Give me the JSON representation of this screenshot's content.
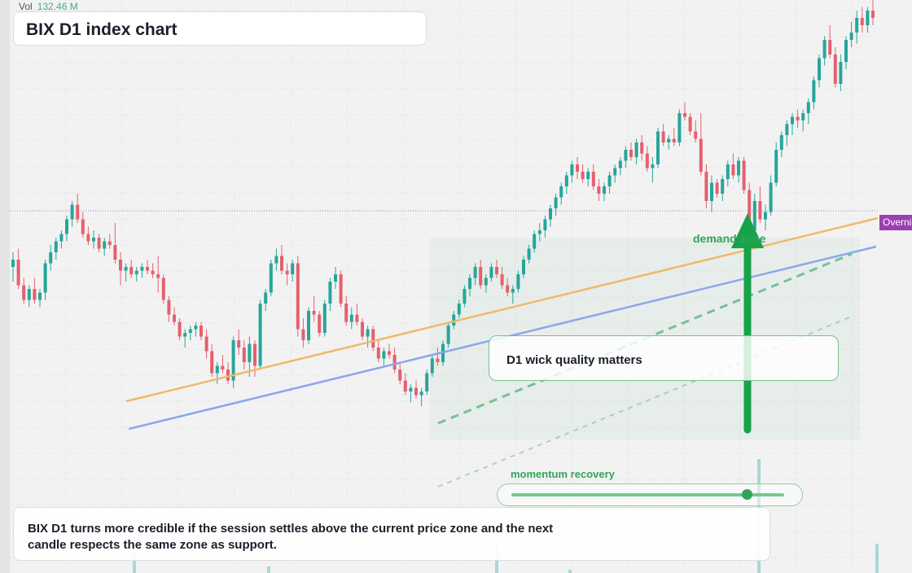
{
  "volume": {
    "label": "Vol",
    "value": "132.46 M"
  },
  "title": "BIX D1 index chart",
  "annotations": {
    "note": "D1 wick quality matters",
    "zone_label": "demand zone",
    "momentum_label": "momentum recovery",
    "momentum_level": 0.87,
    "price_tag": "Overnight",
    "summary": "BIX D1 turns more credible if the session settles above the current price zone and the next candle respects the same zone as support."
  },
  "colors": {
    "up": "#26a69a",
    "down": "#e5606e",
    "trend_orange": "#f0b96a",
    "trend_blue": "#8aa6ee",
    "zone_green": "#2ea55a",
    "price_tag": "#9c3fb0"
  },
  "chart_data": {
    "type": "candlestick",
    "title": "BIX D1 index chart",
    "timeframe": "D1",
    "price_range": [
      0,
      100
    ],
    "candles": [
      [
        50,
        54,
        46,
        52
      ],
      [
        52,
        55,
        44,
        45
      ],
      [
        45,
        47,
        40,
        41
      ],
      [
        41,
        45,
        39,
        44
      ],
      [
        44,
        47,
        40,
        41
      ],
      [
        41,
        44,
        39,
        43
      ],
      [
        43,
        52,
        41,
        51
      ],
      [
        51,
        56,
        49,
        54
      ],
      [
        54,
        58,
        52,
        57
      ],
      [
        57,
        60,
        55,
        59
      ],
      [
        59,
        64,
        57,
        63
      ],
      [
        63,
        68,
        61,
        67
      ],
      [
        67,
        70,
        62,
        63
      ],
      [
        63,
        65,
        58,
        59
      ],
      [
        59,
        61,
        56,
        57
      ],
      [
        57,
        60,
        55,
        58
      ],
      [
        58,
        59,
        54,
        55
      ],
      [
        55,
        58,
        53,
        57
      ],
      [
        57,
        59,
        55,
        56
      ],
      [
        56,
        62,
        51,
        52
      ],
      [
        52,
        54,
        45,
        49
      ],
      [
        49,
        51,
        46,
        50
      ],
      [
        50,
        52,
        47,
        48
      ],
      [
        48,
        50,
        46,
        49
      ],
      [
        49,
        51,
        47,
        50
      ],
      [
        50,
        52,
        48,
        49
      ],
      [
        49,
        51,
        47,
        48
      ],
      [
        48,
        53,
        43,
        47
      ],
      [
        47,
        48,
        40,
        41
      ],
      [
        41,
        42,
        35,
        37
      ],
      [
        37,
        39,
        34,
        35
      ],
      [
        35,
        36,
        30,
        31
      ],
      [
        31,
        33,
        28,
        32
      ],
      [
        32,
        34,
        30,
        33
      ],
      [
        33,
        35,
        31,
        34
      ],
      [
        34,
        35,
        30,
        31
      ],
      [
        31,
        33,
        25,
        27
      ],
      [
        27,
        29,
        20,
        21
      ],
      [
        21,
        24,
        18,
        23
      ],
      [
        23,
        26,
        21,
        22
      ],
      [
        22,
        24,
        18,
        19
      ],
      [
        19,
        31,
        17,
        30
      ],
      [
        30,
        33,
        26,
        28
      ],
      [
        28,
        30,
        22,
        24
      ],
      [
        24,
        31,
        20,
        29
      ],
      [
        29,
        30,
        20,
        23
      ],
      [
        23,
        41,
        22,
        40
      ],
      [
        40,
        44,
        38,
        43
      ],
      [
        43,
        52,
        42,
        51
      ],
      [
        51,
        55,
        49,
        53
      ],
      [
        53,
        56,
        48,
        49
      ],
      [
        49,
        51,
        45,
        48
      ],
      [
        48,
        52,
        46,
        51
      ],
      [
        51,
        53,
        31,
        33
      ],
      [
        33,
        36,
        28,
        30
      ],
      [
        30,
        39,
        29,
        38
      ],
      [
        38,
        42,
        35,
        37
      ],
      [
        37,
        38,
        31,
        32
      ],
      [
        32,
        41,
        31,
        40
      ],
      [
        40,
        47,
        38,
        46
      ],
      [
        46,
        50,
        44,
        48
      ],
      [
        48,
        49,
        39,
        40
      ],
      [
        40,
        42,
        34,
        35
      ],
      [
        35,
        39,
        33,
        37
      ],
      [
        37,
        40,
        34,
        35
      ],
      [
        35,
        36,
        30,
        31
      ],
      [
        31,
        34,
        28,
        33
      ],
      [
        33,
        34,
        27,
        28
      ],
      [
        28,
        30,
        24,
        25
      ],
      [
        25,
        28,
        23,
        27
      ],
      [
        27,
        29,
        25,
        26
      ],
      [
        26,
        28,
        21,
        22
      ],
      [
        22,
        24,
        18,
        19
      ],
      [
        19,
        21,
        15,
        16
      ],
      [
        16,
        18,
        13,
        17
      ],
      [
        17,
        19,
        14,
        15
      ],
      [
        15,
        17,
        12,
        16
      ],
      [
        16,
        22,
        15,
        21
      ],
      [
        21,
        26,
        20,
        25
      ],
      [
        25,
        28,
        23,
        24
      ],
      [
        24,
        30,
        23,
        29
      ],
      [
        29,
        35,
        28,
        34
      ],
      [
        34,
        38,
        33,
        37
      ],
      [
        37,
        41,
        36,
        40
      ],
      [
        40,
        45,
        39,
        44
      ],
      [
        44,
        48,
        42,
        47
      ],
      [
        47,
        51,
        45,
        50
      ],
      [
        50,
        52,
        44,
        45
      ],
      [
        45,
        48,
        43,
        47
      ],
      [
        47,
        51,
        46,
        50
      ],
      [
        50,
        52,
        47,
        48
      ],
      [
        48,
        50,
        44,
        45
      ],
      [
        45,
        47,
        42,
        43
      ],
      [
        43,
        45,
        40,
        44
      ],
      [
        44,
        49,
        43,
        48
      ],
      [
        48,
        53,
        47,
        52
      ],
      [
        52,
        56,
        51,
        55
      ],
      [
        55,
        60,
        54,
        59
      ],
      [
        59,
        62,
        57,
        60
      ],
      [
        60,
        64,
        58,
        63
      ],
      [
        63,
        67,
        61,
        66
      ],
      [
        66,
        70,
        64,
        69
      ],
      [
        69,
        73,
        67,
        72
      ],
      [
        72,
        76,
        70,
        75
      ],
      [
        75,
        79,
        73,
        78
      ],
      [
        78,
        80,
        74,
        76
      ],
      [
        76,
        78,
        73,
        74
      ],
      [
        74,
        77,
        72,
        76
      ],
      [
        76,
        78,
        71,
        72
      ],
      [
        72,
        74,
        68,
        70
      ],
      [
        70,
        73,
        68,
        72
      ],
      [
        72,
        76,
        70,
        75
      ],
      [
        75,
        78,
        73,
        77
      ],
      [
        77,
        80,
        75,
        79
      ],
      [
        79,
        83,
        77,
        82
      ],
      [
        82,
        84,
        79,
        80
      ],
      [
        80,
        85,
        78,
        84
      ],
      [
        84,
        86,
        79,
        81
      ],
      [
        81,
        83,
        76,
        77
      ],
      [
        77,
        80,
        73,
        78
      ],
      [
        78,
        88,
        77,
        87
      ],
      [
        87,
        89,
        83,
        84
      ],
      [
        84,
        86,
        82,
        85
      ],
      [
        85,
        88,
        83,
        84
      ],
      [
        84,
        93,
        83,
        92
      ],
      [
        92,
        95,
        90,
        91
      ],
      [
        91,
        92,
        86,
        87
      ],
      [
        87,
        90,
        84,
        85
      ],
      [
        85,
        92,
        75,
        76
      ],
      [
        76,
        78,
        66,
        68
      ],
      [
        68,
        75,
        65,
        73
      ],
      [
        73,
        74,
        69,
        70
      ],
      [
        70,
        75,
        68,
        74
      ],
      [
        74,
        79,
        72,
        78
      ],
      [
        78,
        81,
        74,
        75
      ],
      [
        75,
        80,
        73,
        79
      ],
      [
        79,
        80,
        70,
        71
      ],
      [
        71,
        73,
        58,
        60
      ],
      [
        60,
        70,
        57,
        68
      ],
      [
        68,
        72,
        62,
        63
      ],
      [
        63,
        67,
        60,
        65
      ],
      [
        65,
        75,
        64,
        73
      ],
      [
        73,
        84,
        72,
        82
      ],
      [
        82,
        87,
        80,
        86
      ],
      [
        86,
        90,
        83,
        89
      ],
      [
        89,
        92,
        86,
        91
      ],
      [
        91,
        93,
        88,
        90
      ],
      [
        90,
        93,
        87,
        92
      ],
      [
        92,
        96,
        89,
        95
      ],
      [
        95,
        102,
        93,
        101
      ],
      [
        101,
        108,
        99,
        107
      ],
      [
        107,
        113,
        105,
        112
      ],
      [
        112,
        116,
        107,
        108
      ],
      [
        108,
        110,
        99,
        100
      ],
      [
        100,
        108,
        98,
        106
      ],
      [
        106,
        113,
        104,
        112
      ],
      [
        112,
        117,
        110,
        114
      ],
      [
        114,
        120,
        111,
        118
      ],
      [
        118,
        121,
        114,
        116
      ],
      [
        116,
        121,
        114,
        120
      ],
      [
        120,
        123,
        116,
        118
      ]
    ]
  }
}
